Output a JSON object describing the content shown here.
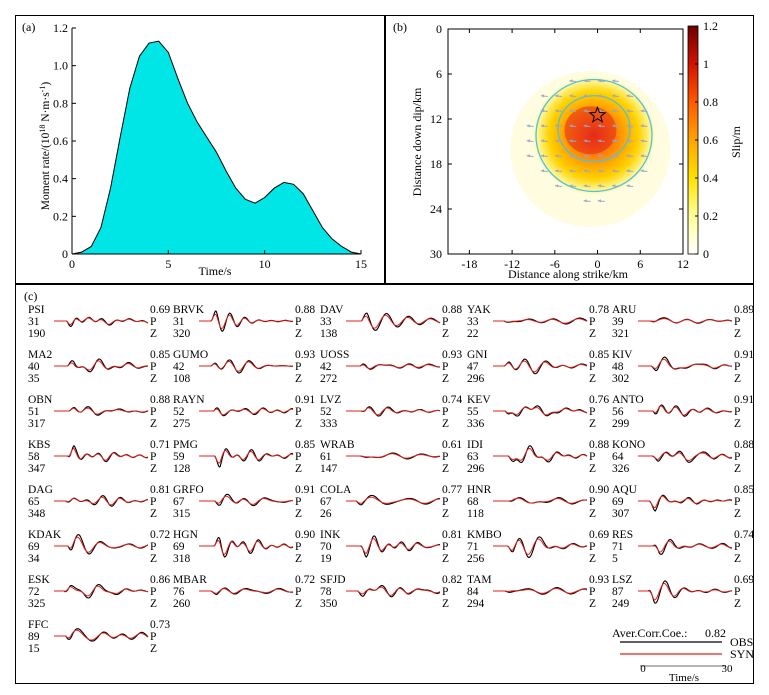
{
  "panel_a": {
    "label": "(a)",
    "chart_data": {
      "type": "area",
      "title": "",
      "xlabel": "Time/s",
      "ylabel": "Moment rate/(10^18 N·m·s^-1)",
      "xlim": [
        0,
        15
      ],
      "ylim": [
        0,
        1.2
      ],
      "xticks": [
        0,
        5,
        10,
        15
      ],
      "yticks": [
        0,
        0.2,
        0.4,
        0.6,
        0.8,
        1.0,
        1.2
      ],
      "ytick_labels": [
        "0",
        "0.2",
        "0.4",
        "0.6",
        "0.8",
        "1.0",
        "1.2"
      ],
      "fill_color": "#00e5e5",
      "x": [
        0,
        0.5,
        1,
        1.5,
        2,
        2.5,
        3,
        3.5,
        4,
        4.5,
        5,
        5.5,
        6,
        6.5,
        7,
        7.5,
        8,
        8.5,
        9,
        9.5,
        10,
        10.5,
        11,
        11.5,
        12,
        12.5,
        13,
        13.5,
        14,
        14.5,
        15
      ],
      "y": [
        0,
        0.01,
        0.04,
        0.14,
        0.35,
        0.62,
        0.88,
        1.05,
        1.12,
        1.13,
        1.07,
        0.93,
        0.8,
        0.7,
        0.62,
        0.54,
        0.44,
        0.35,
        0.29,
        0.27,
        0.3,
        0.35,
        0.38,
        0.37,
        0.32,
        0.23,
        0.14,
        0.08,
        0.04,
        0.01,
        0
      ]
    }
  },
  "panel_b": {
    "label": "(b)",
    "chart_data": {
      "type": "heatmap",
      "title": "",
      "xlabel": "Distance along strike/km",
      "ylabel": "Distance down dip/km",
      "xlim": [
        -21,
        12
      ],
      "ylim": [
        0,
        30
      ],
      "xticks": [
        -18,
        -12,
        -6,
        0,
        6,
        12
      ],
      "yticks": [
        0,
        6,
        12,
        18,
        24,
        30
      ],
      "slip_peak": {
        "x": 0,
        "y": 13,
        "value": 1.0
      },
      "hypocenter": {
        "x": 0,
        "y": 11.5
      },
      "contour_levels": [
        0.25,
        0.5
      ],
      "colorbar": {
        "label": "Slip/m",
        "min": 0,
        "max": 1.2,
        "ticks": [
          0,
          0.2,
          0.4,
          0.6,
          0.8,
          1.0,
          1.2
        ],
        "tick_labels": [
          "0",
          "0.2",
          "0.4",
          "0.6",
          "0.8",
          "1",
          "1.2"
        ],
        "colors": [
          "#ffffff",
          "#ffff99",
          "#ffe100",
          "#ffa500",
          "#ff5a00",
          "#d21400",
          "#6e0000"
        ]
      },
      "contour_color": "#4fc3d9",
      "vector_color": "#9aa6c6",
      "star_color": "#d00000"
    }
  },
  "panel_c": {
    "label": "(c)",
    "stations": [
      {
        "name": "PSI",
        "dist": "31",
        "azi": "190",
        "cc": "0.69",
        "phase": "P",
        "comp": "Z"
      },
      {
        "name": "BRVK",
        "dist": "31",
        "azi": "320",
        "cc": "0.88",
        "phase": "P",
        "comp": "Z"
      },
      {
        "name": "DAV",
        "dist": "33",
        "azi": "138",
        "cc": "0.88",
        "phase": "P",
        "comp": "Z"
      },
      {
        "name": "YAK",
        "dist": "33",
        "azi": "22",
        "cc": "0.78",
        "phase": "P",
        "comp": "Z"
      },
      {
        "name": "ARU",
        "dist": "39",
        "azi": "321",
        "cc": "0.89",
        "phase": "P",
        "comp": "Z"
      },
      {
        "name": "MA2",
        "dist": "40",
        "azi": "35",
        "cc": "0.85",
        "phase": "P",
        "comp": "Z"
      },
      {
        "name": "GUMO",
        "dist": "42",
        "azi": "108",
        "cc": "0.93",
        "phase": "P",
        "comp": "Z"
      },
      {
        "name": "UOSS",
        "dist": "42",
        "azi": "272",
        "cc": "0.93",
        "phase": "P",
        "comp": "Z"
      },
      {
        "name": "GNI",
        "dist": "47",
        "azi": "296",
        "cc": "0.85",
        "phase": "P",
        "comp": "Z"
      },
      {
        "name": "KIV",
        "dist": "48",
        "azi": "302",
        "cc": "0.91",
        "phase": "P",
        "comp": "Z"
      },
      {
        "name": "OBN",
        "dist": "51",
        "azi": "317",
        "cc": "0.88",
        "phase": "P",
        "comp": "Z"
      },
      {
        "name": "RAYN",
        "dist": "52",
        "azi": "275",
        "cc": "0.91",
        "phase": "P",
        "comp": "Z"
      },
      {
        "name": "LVZ",
        "dist": "52",
        "azi": "333",
        "cc": "0.74",
        "phase": "P",
        "comp": "Z"
      },
      {
        "name": "KEV",
        "dist": "55",
        "azi": "336",
        "cc": "0.76",
        "phase": "P",
        "comp": "Z"
      },
      {
        "name": "ANTO",
        "dist": "56",
        "azi": "299",
        "cc": "0.91",
        "phase": "P",
        "comp": "Z"
      },
      {
        "name": "KBS",
        "dist": "58",
        "azi": "347",
        "cc": "0.71",
        "phase": "P",
        "comp": "Z"
      },
      {
        "name": "PMG",
        "dist": "59",
        "azi": "128",
        "cc": "0.85",
        "phase": "P",
        "comp": "Z"
      },
      {
        "name": "WRAB",
        "dist": "61",
        "azi": "147",
        "cc": "0.61",
        "phase": "P",
        "comp": "Z"
      },
      {
        "name": "IDI",
        "dist": "63",
        "azi": "296",
        "cc": "0.88",
        "phase": "P",
        "comp": "Z"
      },
      {
        "name": "KONO",
        "dist": "64",
        "azi": "326",
        "cc": "0.88",
        "phase": "P",
        "comp": "Z"
      },
      {
        "name": "DAG",
        "dist": "65",
        "azi": "348",
        "cc": "0.81",
        "phase": "P",
        "comp": "Z"
      },
      {
        "name": "GRFO",
        "dist": "67",
        "azi": "315",
        "cc": "0.91",
        "phase": "P",
        "comp": "Z"
      },
      {
        "name": "COLA",
        "dist": "67",
        "azi": "26",
        "cc": "0.77",
        "phase": "P",
        "comp": "Z"
      },
      {
        "name": "HNR",
        "dist": "68",
        "azi": "118",
        "cc": "0.90",
        "phase": "P",
        "comp": "Z"
      },
      {
        "name": "AQU",
        "dist": "69",
        "azi": "307",
        "cc": "0.85",
        "phase": "P",
        "comp": "Z"
      },
      {
        "name": "KDAK",
        "dist": "69",
        "azi": "34",
        "cc": "0.72",
        "phase": "P",
        "comp": "Z"
      },
      {
        "name": "HGN",
        "dist": "69",
        "azi": "318",
        "cc": "0.90",
        "phase": "P",
        "comp": "Z"
      },
      {
        "name": "INK",
        "dist": "70",
        "azi": "19",
        "cc": "0.81",
        "phase": "P",
        "comp": "Z"
      },
      {
        "name": "KMBO",
        "dist": "71",
        "azi": "256",
        "cc": "0.69",
        "phase": "P",
        "comp": "Z"
      },
      {
        "name": "RES",
        "dist": "71",
        "azi": "5",
        "cc": "0.74",
        "phase": "P",
        "comp": "Z"
      },
      {
        "name": "ESK",
        "dist": "72",
        "azi": "325",
        "cc": "0.86",
        "phase": "P",
        "comp": "Z"
      },
      {
        "name": "MBAR",
        "dist": "76",
        "azi": "260",
        "cc": "0.72",
        "phase": "P",
        "comp": "Z"
      },
      {
        "name": "SFJD",
        "dist": "78",
        "azi": "350",
        "cc": "0.82",
        "phase": "P",
        "comp": "Z"
      },
      {
        "name": "TAM",
        "dist": "84",
        "azi": "294",
        "cc": "0.93",
        "phase": "P",
        "comp": "Z"
      },
      {
        "name": "LSZ",
        "dist": "87",
        "azi": "249",
        "cc": "0.69",
        "phase": "P",
        "comp": "Z"
      },
      {
        "name": "FFC",
        "dist": "89",
        "azi": "15",
        "cc": "0.73",
        "phase": "P",
        "comp": "Z"
      }
    ],
    "average_label": "Aver.Corr.Coe.:",
    "average_value": "0.82",
    "legend": [
      {
        "label": "OBS",
        "color": "#000000"
      },
      {
        "label": "SYN",
        "color": "#e0201c"
      }
    ],
    "time_axis": {
      "label": "Time/s",
      "ticks": [
        "0",
        "30"
      ],
      "range": [
        0,
        30
      ]
    }
  }
}
